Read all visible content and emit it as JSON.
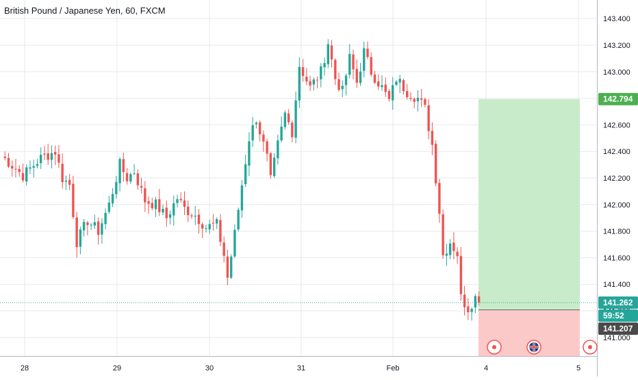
{
  "title": "British Pound / Japanese Yen, 60, FXCM",
  "colors": {
    "up": "#26a69a",
    "down": "#ef5350",
    "grid": "#e6e9ef",
    "axis_text": "#131722",
    "profit_zone": "#c8ebc9",
    "loss_zone": "#fcc9c9",
    "target_label": "#4caf50",
    "current_label": "#26a69a",
    "stop_label": "#4a4a4a",
    "marker": "#ef5350"
  },
  "price_labels": {
    "target": "142.794",
    "current": "141.262",
    "countdown": "59:52",
    "stop": "141.207"
  },
  "icons": [
    "event-marker-icon",
    "uk-flag-icon",
    "event-marker-icon"
  ],
  "chart_data": {
    "type": "candlestick",
    "title": "British Pound / Japanese Yen, 60, FXCM",
    "symbol": "GBPJPY",
    "interval": "60",
    "source": "FXCM",
    "x_tick_labels": [
      "28",
      "29",
      "30",
      "31",
      "Feb",
      "4",
      "5"
    ],
    "y_ticks": [
      "141.000",
      "141.200",
      "141.400",
      "141.600",
      "141.800",
      "142.000",
      "142.200",
      "142.400",
      "142.600",
      "142.800",
      "143.000",
      "143.200",
      "143.400"
    ],
    "ylim": [
      140.86,
      143.54
    ],
    "grid": true,
    "legend": "none",
    "series_anchors": [
      {
        "bar": 0,
        "price": 142.37
      },
      {
        "bar": 6,
        "price": 142.22
      },
      {
        "bar": 11,
        "price": 142.35
      },
      {
        "bar": 15,
        "price": 142.4
      },
      {
        "bar": 17,
        "price": 142.2
      },
      {
        "bar": 19,
        "price": 142.15
      },
      {
        "bar": 21,
        "price": 141.72
      },
      {
        "bar": 24,
        "price": 141.88
      },
      {
        "bar": 27,
        "price": 141.8
      },
      {
        "bar": 30,
        "price": 142.0
      },
      {
        "bar": 33,
        "price": 142.3
      },
      {
        "bar": 35,
        "price": 142.2
      },
      {
        "bar": 37,
        "price": 142.25
      },
      {
        "bar": 40,
        "price": 142.03
      },
      {
        "bar": 43,
        "price": 142.0
      },
      {
        "bar": 46,
        "price": 141.9
      },
      {
        "bar": 49,
        "price": 142.05
      },
      {
        "bar": 51,
        "price": 141.97
      },
      {
        "bar": 54,
        "price": 141.92
      },
      {
        "bar": 57,
        "price": 141.83
      },
      {
        "bar": 60,
        "price": 141.85
      },
      {
        "bar": 62,
        "price": 141.62
      },
      {
        "bar": 63,
        "price": 141.45
      },
      {
        "bar": 65,
        "price": 141.78
      },
      {
        "bar": 67,
        "price": 142.15
      },
      {
        "bar": 69,
        "price": 142.5
      },
      {
        "bar": 71,
        "price": 142.65
      },
      {
        "bar": 74,
        "price": 142.35
      },
      {
        "bar": 75,
        "price": 142.18
      },
      {
        "bar": 77,
        "price": 142.45
      },
      {
        "bar": 79,
        "price": 142.68
      },
      {
        "bar": 81,
        "price": 142.55
      },
      {
        "bar": 83,
        "price": 143.05
      },
      {
        "bar": 86,
        "price": 142.88
      },
      {
        "bar": 89,
        "price": 143.0
      },
      {
        "bar": 91,
        "price": 143.22
      },
      {
        "bar": 93,
        "price": 142.95
      },
      {
        "bar": 95,
        "price": 142.85
      },
      {
        "bar": 97,
        "price": 143.1
      },
      {
        "bar": 99,
        "price": 142.92
      },
      {
        "bar": 101,
        "price": 143.15
      },
      {
        "bar": 103,
        "price": 143.0
      },
      {
        "bar": 106,
        "price": 142.88
      },
      {
        "bar": 108,
        "price": 142.78
      },
      {
        "bar": 110,
        "price": 142.95
      },
      {
        "bar": 113,
        "price": 142.85
      },
      {
        "bar": 116,
        "price": 142.8
      },
      {
        "bar": 118,
        "price": 142.72
      },
      {
        "bar": 120,
        "price": 142.45
      },
      {
        "bar": 122,
        "price": 141.95
      },
      {
        "bar": 123,
        "price": 141.62
      },
      {
        "bar": 125,
        "price": 141.72
      },
      {
        "bar": 127,
        "price": 141.63
      },
      {
        "bar": 128,
        "price": 141.3
      },
      {
        "bar": 130,
        "price": 141.22
      },
      {
        "bar": 132,
        "price": 141.3
      },
      {
        "bar": 133,
        "price": 141.262
      }
    ],
    "last_price": 141.262,
    "position": {
      "type": "long",
      "entry": 141.207,
      "target": 142.794,
      "stop": 140.88
    }
  }
}
